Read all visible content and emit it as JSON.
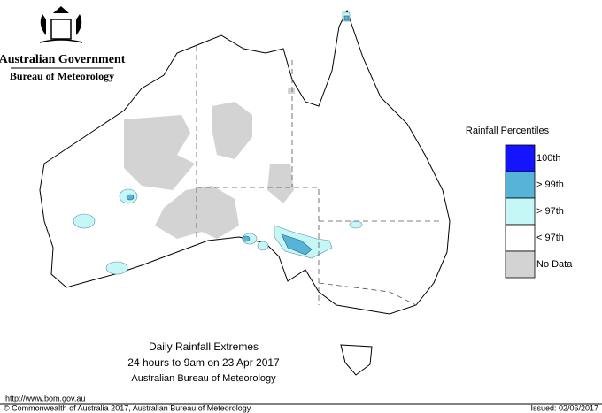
{
  "header": {
    "government": "Australian Government",
    "bureau": "Bureau of Meteorology"
  },
  "legend": {
    "title": "Rainfall Percentiles",
    "items": [
      {
        "label": "100th",
        "color": "#1414ff"
      },
      {
        "label": "> 99th",
        "color": "#56b4d8"
      },
      {
        "label": "> 97th",
        "color": "#c6f7f7"
      },
      {
        "label": "< 97th",
        "color": "#ffffff"
      },
      {
        "label": "No Data",
        "color": "#d3d3d3"
      }
    ]
  },
  "caption": {
    "lines": [
      "Daily Rainfall Extremes",
      "24 hours to 9am on 23 Apr 2017",
      "Australian Bureau of Meteorology"
    ]
  },
  "footer": {
    "url": "http://www.bom.gov.au",
    "copyright": "© Commonwealth of Australia 2017, Australian Bureau of Meteorology",
    "issued": "Issued: 02/06/2017"
  }
}
